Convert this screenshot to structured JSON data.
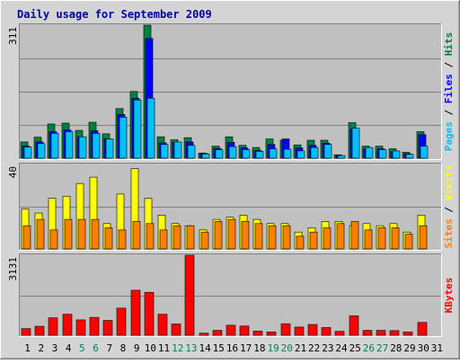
{
  "chart_data": {
    "type": "bar",
    "title": "Daily usage for September 2009",
    "categories": [
      "1",
      "2",
      "3",
      "4",
      "5",
      "6",
      "7",
      "8",
      "9",
      "10",
      "11",
      "12",
      "13",
      "14",
      "15",
      "16",
      "17",
      "18",
      "19",
      "20",
      "21",
      "22",
      "23",
      "24",
      "25",
      "26",
      "27",
      "28",
      "29",
      "30",
      "31"
    ],
    "weekend_days": [
      "5",
      "6",
      "12",
      "13",
      "19",
      "20",
      "26",
      "27"
    ],
    "panels": [
      {
        "id": "hits-files-pages",
        "max_label": "311",
        "ylim": [
          0,
          311
        ],
        "legend": [
          "Pages",
          "Files",
          "Hits"
        ],
        "legend_colors": [
          "#00c0ff",
          "#0000ff",
          "#008040"
        ],
        "grid": true,
        "series": [
          {
            "name": "Hits",
            "color": "#008040",
            "values": [
              38,
              49,
              80,
              82,
              65,
              84,
              57,
              116,
              156,
              311,
              50,
              43,
              48,
              12,
              28,
              50,
              30,
              25,
              45,
              42,
              31,
              42,
              42,
              8,
              83,
              28,
              28,
              22,
              14,
              62,
              0
            ]
          },
          {
            "name": "Files",
            "color": "#0000ff",
            "values": [
              28,
              38,
              62,
              66,
              50,
              64,
              45,
              102,
              140,
              280,
              36,
              37,
              38,
              11,
              23,
              37,
              24,
              18,
              32,
              45,
              24,
              30,
              35,
              6,
              68,
              22,
              22,
              15,
              10,
              55,
              0
            ]
          },
          {
            "name": "Pages",
            "color": "#00c0ff",
            "values": [
              26,
              34,
              58,
              62,
              50,
              58,
              45,
              96,
              136,
              140,
              32,
              38,
              30,
              10,
              20,
              27,
              20,
              16,
              22,
              21,
              17,
              25,
              32,
              6,
              70,
              25,
              20,
              17,
              9,
              28,
              0
            ]
          }
        ]
      },
      {
        "id": "visits-sites",
        "max_label": "40",
        "ylim": [
          0,
          40
        ],
        "legend": [
          "Sites",
          "Visits"
        ],
        "legend_colors": [
          "#ff8000",
          "#ffff00"
        ],
        "grid": true,
        "series": [
          {
            "name": "Visits",
            "color": "#ffff00",
            "values": [
              19,
              17,
              24,
              25,
              31,
              34,
              12,
              26,
              38,
              24,
              16,
              12,
              11,
              9,
              14,
              15,
              16,
              14,
              12,
              12,
              8,
              10,
              13,
              13,
              11,
              12,
              11,
              12,
              8,
              16,
              0
            ]
          },
          {
            "name": "Sites",
            "color": "#ff8000",
            "values": [
              11,
              14,
              9,
              14,
              14,
              14,
              10,
              9,
              13,
              12,
              9,
              11,
              11,
              8,
              13,
              14,
              13,
              12,
              11,
              11,
              6,
              8,
              10,
              12,
              13,
              9,
              10,
              10,
              7,
              11,
              0
            ]
          }
        ]
      },
      {
        "id": "kbytes",
        "max_label": "3131",
        "ylim": [
          0,
          3131
        ],
        "legend": [
          "KBytes"
        ],
        "legend_colors": [
          "#ff0000"
        ],
        "grid": true,
        "series": [
          {
            "name": "KBytes",
            "color": "#ff0000",
            "values": [
              260,
              350,
              680,
              820,
              600,
              700,
              580,
              1060,
              1760,
              1680,
              820,
              440,
              3131,
              80,
              190,
              390,
              360,
              160,
              130,
              450,
              320,
              420,
              300,
              150,
              760,
              190,
              190,
              180,
              130,
              500,
              0
            ]
          }
        ]
      }
    ]
  }
}
